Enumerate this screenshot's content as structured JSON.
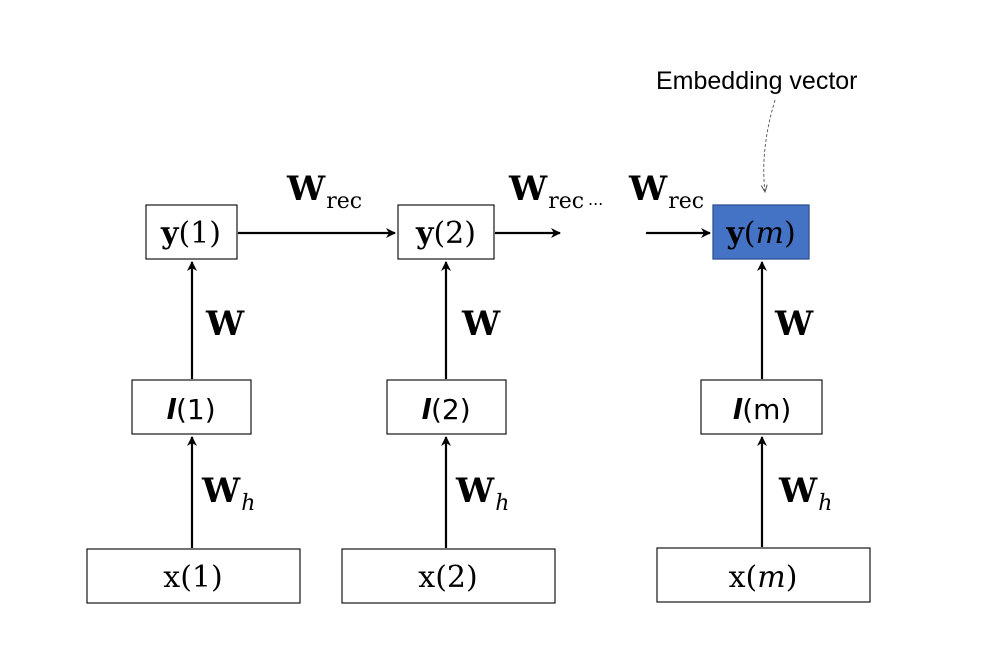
{
  "annotation": {
    "label": "Embedding vector"
  },
  "ellipsis": "...",
  "columns": [
    {
      "y": {
        "name": "y",
        "arg": "(1)"
      },
      "l": {
        "name": "l",
        "arg": "(1)"
      },
      "x": {
        "name": "x",
        "arg": "(1)"
      },
      "w_label": "W",
      "wh_label": "W",
      "wh_sub": "h"
    },
    {
      "y": {
        "name": "y",
        "arg": "(2)"
      },
      "l": {
        "name": "l",
        "arg": "(2)"
      },
      "x": {
        "name": "x",
        "arg": "(2)"
      },
      "w_label": "W",
      "wh_label": "W",
      "wh_sub": "h"
    },
    {
      "y": {
        "name": "y",
        "arg_open": "(",
        "arg_var": "m",
        "arg_close": ")"
      },
      "l": {
        "name": "l",
        "arg": "(m)"
      },
      "x": {
        "name": "x",
        "arg_open": "(",
        "arg_var": "m",
        "arg_close": ")"
      },
      "w_label": "W",
      "wh_label": "W",
      "wh_sub": "h"
    }
  ],
  "recurrent_edges": [
    {
      "label": "W",
      "sub": "rec"
    },
    {
      "label": "W",
      "sub": "rec"
    },
    {
      "label": "W",
      "sub": "rec"
    }
  ],
  "colors": {
    "highlight_fill": "#4472c4",
    "highlight_stroke": "#2f528f",
    "line": "#000000"
  }
}
